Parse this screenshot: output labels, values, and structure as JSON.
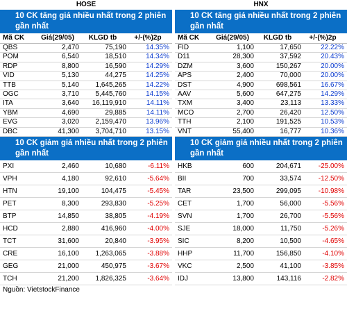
{
  "markets": [
    {
      "title": "HOSE",
      "columns": [
        "Mã CK",
        "Giá(29/05)",
        "KLGD tb",
        "+/-(%)2p"
      ],
      "gainers": {
        "title": "10 CK tăng giá nhiều nhất trong 2 phiên gần nhất",
        "rows": [
          [
            "QBS",
            "2,470",
            "75,190",
            "14.35%"
          ],
          [
            "POM",
            "6,540",
            "18,510",
            "14.34%"
          ],
          [
            "RDP",
            "8,800",
            "16,590",
            "14.29%"
          ],
          [
            "VID",
            "5,130",
            "44,275",
            "14.25%"
          ],
          [
            "TTB",
            "5,140",
            "1,645,265",
            "14.22%"
          ],
          [
            "OGC",
            "3,710",
            "5,445,760",
            "14.15%"
          ],
          [
            "ITA",
            "3,640",
            "16,119,910",
            "14.11%"
          ],
          [
            "YBM",
            "4,690",
            "29,885",
            "14.11%"
          ],
          [
            "EVG",
            "3,020",
            "2,159,470",
            "13.96%"
          ],
          [
            "DBC",
            "41,300",
            "3,704,710",
            "13.15%"
          ]
        ]
      },
      "losers": {
        "title": "10 CK giảm giá nhiều nhất trong 2 phiên gần nhất",
        "rows": [
          [
            "PXI",
            "2,460",
            "10,680",
            "-6.11%"
          ],
          [
            "VPH",
            "4,180",
            "92,610",
            "-5.64%"
          ],
          [
            "HTN",
            "19,100",
            "104,475",
            "-5.45%"
          ],
          [
            "PET",
            "8,300",
            "293,830",
            "-5.25%"
          ],
          [
            "BTP",
            "14,850",
            "38,805",
            "-4.19%"
          ],
          [
            "HCD",
            "2,880",
            "416,960",
            "-4.00%"
          ],
          [
            "TCT",
            "31,600",
            "20,840",
            "-3.95%"
          ],
          [
            "CRE",
            "16,100",
            "1,263,065",
            "-3.88%"
          ],
          [
            "GEG",
            "21,000",
            "450,975",
            "-3.67%"
          ],
          [
            "TCH",
            "21,200",
            "1,826,325",
            "-3.64%"
          ]
        ]
      }
    },
    {
      "title": "HNX",
      "columns": [
        "Mã CK",
        "Giá(29/05)",
        "KLGD tb",
        "+/-(%)2p"
      ],
      "gainers": {
        "title": "10 CK tăng giá nhiều nhất trong 2 phiên gần nhất",
        "rows": [
          [
            "FID",
            "1,100",
            "17,650",
            "22.22%"
          ],
          [
            "D11",
            "28,300",
            "37,592",
            "20.43%"
          ],
          [
            "DZM",
            "3,600",
            "150,267",
            "20.00%"
          ],
          [
            "APS",
            "2,400",
            "70,000",
            "20.00%"
          ],
          [
            "DST",
            "4,900",
            "698,561",
            "16.67%"
          ],
          [
            "AAV",
            "5,600",
            "647,275",
            "14.29%"
          ],
          [
            "TXM",
            "3,400",
            "23,113",
            "13.33%"
          ],
          [
            "MCO",
            "2,700",
            "26,420",
            "12.50%"
          ],
          [
            "TTH",
            "2,100",
            "191,525",
            "10.53%"
          ],
          [
            "VNT",
            "55,400",
            "16,777",
            "10.36%"
          ]
        ]
      },
      "losers": {
        "title": "10 CK giảm giá nhiều nhất trong 2 phiên gần nhất",
        "rows": [
          [
            "HKB",
            "600",
            "204,671",
            "-25.00%"
          ],
          [
            "BII",
            "700",
            "33,574",
            "-12.50%"
          ],
          [
            "TAR",
            "23,500",
            "299,095",
            "-10.98%"
          ],
          [
            "CET",
            "1,700",
            "56,000",
            "-5.56%"
          ],
          [
            "SVN",
            "1,700",
            "26,700",
            "-5.56%"
          ],
          [
            "SJE",
            "18,000",
            "11,750",
            "-5.26%"
          ],
          [
            "SIC",
            "8,200",
            "10,500",
            "-4.65%"
          ],
          [
            "HHP",
            "11,700",
            "156,850",
            "-4.10%"
          ],
          [
            "VKC",
            "2,500",
            "41,100",
            "-3.85%"
          ],
          [
            "IDJ",
            "13,800",
            "143,116",
            "-2.82%"
          ]
        ]
      }
    }
  ],
  "source": "Nguồn: VietstockFinance"
}
